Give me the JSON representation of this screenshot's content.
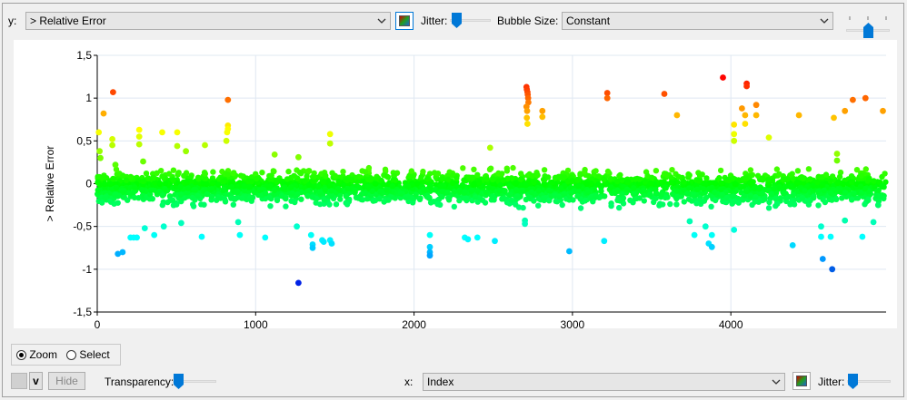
{
  "top_bar": {
    "y_label": "y:",
    "y_value": "> Relative Error",
    "jitter_label": "Jitter:",
    "bubble_size_label": "Bubble Size:",
    "bubble_size_value": "Constant"
  },
  "mode": {
    "zoom_label": "Zoom",
    "select_label": "Select",
    "selected": "Zoom"
  },
  "bottom_bar": {
    "v_label": "v",
    "hide_label": "Hide",
    "transparency_label": "Transparency:",
    "x_label": "x:",
    "x_value": "Index",
    "jitter_label": "Jitter:"
  },
  "colors": {
    "high": "#e81000",
    "mid": "#30f000",
    "low": "#0018e0",
    "grid": "#dfe8f2",
    "accent": "#0078d7"
  },
  "chart_data": {
    "type": "scatter",
    "xlabel": "Index",
    "ylabel": "> Relative Error",
    "xlim": [
      0,
      4980
    ],
    "ylim": [
      -1.5,
      1.5
    ],
    "x_ticks": [
      "0",
      "1000",
      "2000",
      "3000",
      "4000"
    ],
    "y_ticks": [
      "1,5",
      "1",
      "0,5",
      "0",
      "-0,5",
      "-1",
      "-1,5"
    ],
    "grid": true,
    "color_scale": "value",
    "points": [
      [
        100,
        1.07
      ],
      [
        40,
        0.82
      ],
      [
        10,
        0.6
      ],
      [
        15,
        0.38
      ],
      [
        20,
        0.3
      ],
      [
        95,
        0.52
      ],
      [
        95,
        0.45
      ],
      [
        115,
        0.22
      ],
      [
        265,
        0.63
      ],
      [
        265,
        0.55
      ],
      [
        265,
        0.46
      ],
      [
        290,
        0.26
      ],
      [
        410,
        0.6
      ],
      [
        505,
        0.6
      ],
      [
        505,
        0.44
      ],
      [
        560,
        0.38
      ],
      [
        680,
        0.45
      ],
      [
        825,
        0.98
      ],
      [
        825,
        0.68
      ],
      [
        825,
        0.64
      ],
      [
        820,
        0.6
      ],
      [
        815,
        0.5
      ],
      [
        1120,
        0.34
      ],
      [
        1270,
        0.31
      ],
      [
        1470,
        0.58
      ],
      [
        1470,
        0.47
      ],
      [
        2480,
        0.42
      ],
      [
        2710,
        1.13
      ],
      [
        2712,
        1.1
      ],
      [
        2716,
        1.07
      ],
      [
        2718,
        1.04
      ],
      [
        2720,
        1.0
      ],
      [
        2722,
        0.95
      ],
      [
        2710,
        0.9
      ],
      [
        2714,
        0.85
      ],
      [
        2712,
        0.77
      ],
      [
        2716,
        0.7
      ],
      [
        2810,
        0.85
      ],
      [
        2810,
        0.78
      ],
      [
        3220,
        1.06
      ],
      [
        3220,
        1.0
      ],
      [
        3580,
        1.05
      ],
      [
        3660,
        0.8
      ],
      [
        3950,
        1.24
      ],
      [
        4020,
        0.69
      ],
      [
        4020,
        0.58
      ],
      [
        4020,
        0.5
      ],
      [
        4070,
        0.88
      ],
      [
        4090,
        0.8
      ],
      [
        4090,
        0.7
      ],
      [
        4100,
        1.17
      ],
      [
        4100,
        1.14
      ],
      [
        4160,
        0.92
      ],
      [
        4160,
        0.8
      ],
      [
        4240,
        0.54
      ],
      [
        4430,
        0.8
      ],
      [
        4650,
        0.77
      ],
      [
        4670,
        0.35
      ],
      [
        4670,
        0.27
      ],
      [
        4720,
        0.85
      ],
      [
        4770,
        0.98
      ],
      [
        4850,
        1.0
      ],
      [
        4960,
        0.85
      ],
      [
        130,
        -0.82
      ],
      [
        160,
        -0.8
      ],
      [
        210,
        -0.63
      ],
      [
        230,
        -0.63
      ],
      [
        250,
        -0.63
      ],
      [
        300,
        -0.52
      ],
      [
        360,
        -0.6
      ],
      [
        420,
        -0.5
      ],
      [
        530,
        -0.46
      ],
      [
        660,
        -0.62
      ],
      [
        890,
        -0.45
      ],
      [
        900,
        -0.6
      ],
      [
        1060,
        -0.63
      ],
      [
        1260,
        -0.5
      ],
      [
        1270,
        -1.16
      ],
      [
        1350,
        -0.6
      ],
      [
        1360,
        -0.71
      ],
      [
        1360,
        -0.75
      ],
      [
        1420,
        -0.66
      ],
      [
        1430,
        -0.68
      ],
      [
        1470,
        -0.66
      ],
      [
        1480,
        -0.7
      ],
      [
        2100,
        -0.6
      ],
      [
        2100,
        -0.74
      ],
      [
        2100,
        -0.8
      ],
      [
        2100,
        -0.84
      ],
      [
        2320,
        -0.63
      ],
      [
        2340,
        -0.65
      ],
      [
        2400,
        -0.63
      ],
      [
        2510,
        -0.67
      ],
      [
        2700,
        -0.43
      ],
      [
        2700,
        -0.47
      ],
      [
        2980,
        -0.79
      ],
      [
        3200,
        -0.67
      ],
      [
        3740,
        -0.44
      ],
      [
        3770,
        -0.6
      ],
      [
        3840,
        -0.5
      ],
      [
        3860,
        -0.7
      ],
      [
        3880,
        -0.74
      ],
      [
        3880,
        -0.6
      ],
      [
        4020,
        -0.54
      ],
      [
        4390,
        -0.72
      ],
      [
        4570,
        -0.5
      ],
      [
        4570,
        -0.62
      ],
      [
        4580,
        -0.88
      ],
      [
        4630,
        -0.62
      ],
      [
        4640,
        -1.0
      ],
      [
        4720,
        -0.43
      ],
      [
        4830,
        -0.62
      ],
      [
        4900,
        -0.45
      ],
      [
        4930,
        -0.25
      ]
    ],
    "dense_band": {
      "x_range": [
        0,
        4980
      ],
      "y_range": [
        -0.32,
        0.22
      ],
      "count": 2600
    }
  }
}
